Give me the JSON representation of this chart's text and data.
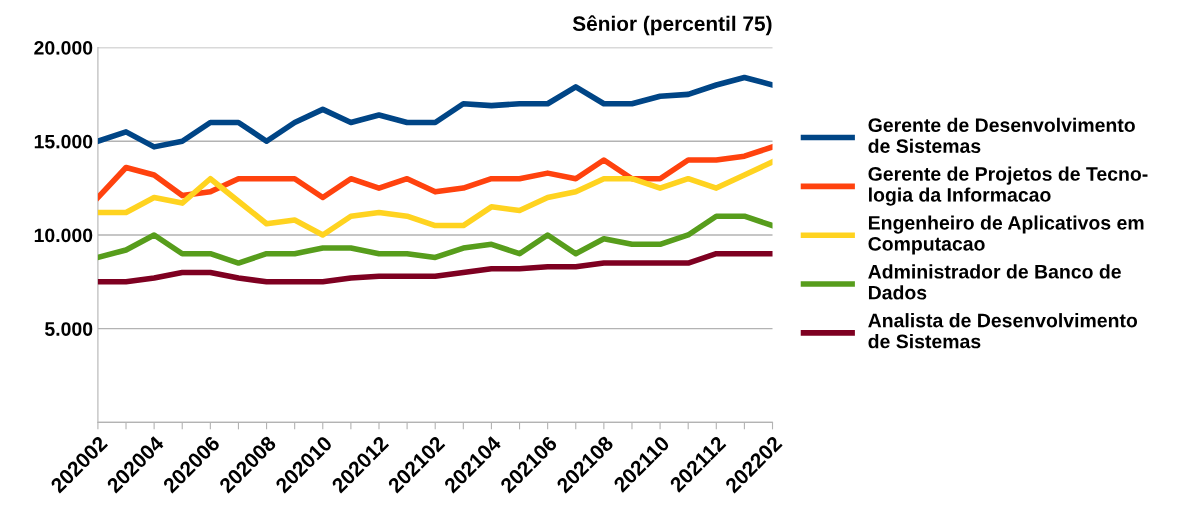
{
  "chart_data": {
    "type": "line",
    "title": "Sênior (percentil 75)",
    "categories": [
      "202002",
      null,
      "202004",
      null,
      "202006",
      null,
      "202008",
      null,
      "202010",
      null,
      "202012",
      null,
      "202102",
      null,
      "202104",
      null,
      "202106",
      null,
      "202108",
      null,
      "202110",
      null,
      "202112",
      null,
      "202202"
    ],
    "series": [
      {
        "name": "Gerente de Desenvolvimento de Sistemas",
        "color": "#004586",
        "values": [
          15000,
          15500,
          14700,
          15000,
          16000,
          16000,
          15000,
          16000,
          16700,
          16000,
          16400,
          16000,
          16000,
          17000,
          16900,
          17000,
          17000,
          17900,
          17000,
          17000,
          17400,
          17500,
          18000,
          18400,
          18000
        ]
      },
      {
        "name": "Gerente de Projetos de Tecno-logia da Informacao",
        "color": "#ff420e",
        "values": [
          12000,
          13600,
          13200,
          12100,
          12300,
          13000,
          13000,
          13000,
          12000,
          13000,
          12500,
          13000,
          12300,
          12500,
          13000,
          13000,
          13300,
          13000,
          14000,
          13000,
          13000,
          14000,
          14000,
          14200,
          14700
        ]
      },
      {
        "name": "Engenheiro de Aplicativos em Computacao",
        "color": "#ffd320",
        "values": [
          11200,
          11200,
          12000,
          11700,
          13000,
          11800,
          10600,
          10800,
          10000,
          11000,
          11200,
          11000,
          10500,
          10500,
          11500,
          11300,
          12000,
          12300,
          13000,
          13000,
          12500,
          13000,
          12500,
          13200,
          13900
        ]
      },
      {
        "name": "Administrador de Banco de Dados",
        "color": "#579d1c",
        "values": [
          8800,
          9200,
          10000,
          9000,
          9000,
          8500,
          9000,
          9000,
          9300,
          9300,
          9000,
          9000,
          8800,
          9300,
          9500,
          9000,
          10000,
          9000,
          9800,
          9500,
          9500,
          10000,
          11000,
          11000,
          10500
        ]
      },
      {
        "name": "Analista de Desenvolvimento de Sistemas",
        "color": "#7e0021",
        "values": [
          7500,
          7500,
          7700,
          8000,
          8000,
          7700,
          7500,
          7500,
          7500,
          7700,
          7800,
          7800,
          7800,
          8000,
          8200,
          8200,
          8300,
          8300,
          8500,
          8500,
          8500,
          8500,
          9000,
          9000,
          9000
        ]
      }
    ],
    "ylim": [
      0,
      20000
    ],
    "yticks": [
      {
        "value": 0,
        "label": null
      },
      {
        "value": 5000,
        "label": "5.000"
      },
      {
        "value": 10000,
        "label": "10.000"
      },
      {
        "value": 15000,
        "label": "15.000"
      },
      {
        "value": 20000,
        "label": "20.000"
      }
    ],
    "grid": "y",
    "legend": "right",
    "marker": "none",
    "line_style": "solid"
  }
}
